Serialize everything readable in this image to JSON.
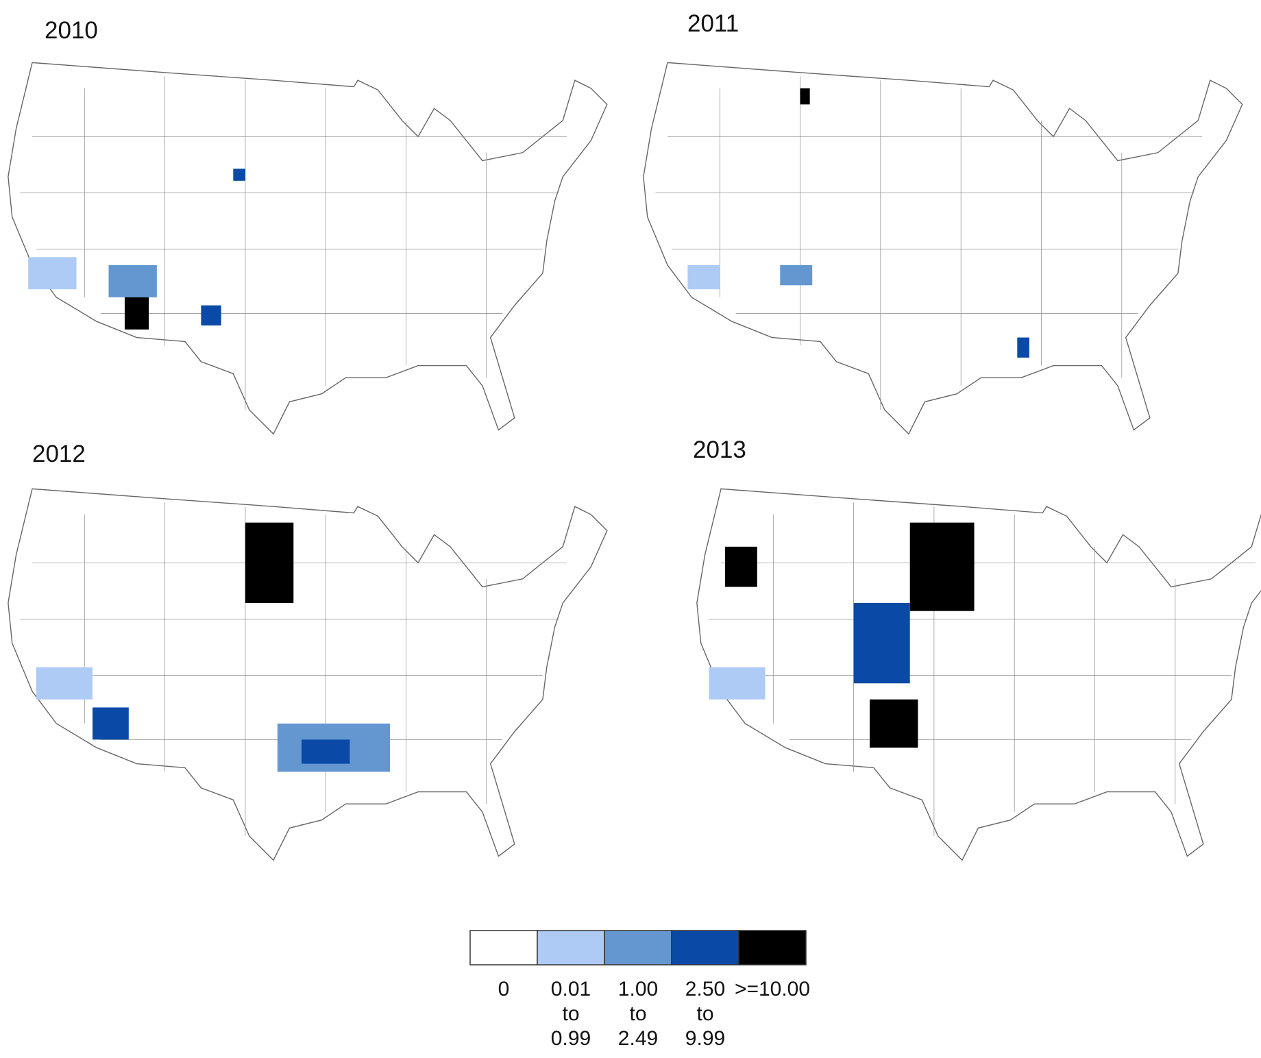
{
  "maps": [
    {
      "title": "2010"
    },
    {
      "title": "2011"
    },
    {
      "title": "2012"
    },
    {
      "title": "2013"
    }
  ],
  "legend": {
    "items": [
      {
        "color": "#ffffff",
        "label": [
          "0"
        ]
      },
      {
        "color": "#aecbf6",
        "label": [
          "0.01",
          "to",
          "0.99"
        ]
      },
      {
        "color": "#6497d0",
        "label": [
          "1.00",
          "to",
          "2.49"
        ]
      },
      {
        "color": "#0a4aa6",
        "label": [
          "2.50",
          "to",
          "9.99"
        ]
      },
      {
        "color": "#000000",
        "label": [
          ">=10.00"
        ]
      }
    ]
  }
}
